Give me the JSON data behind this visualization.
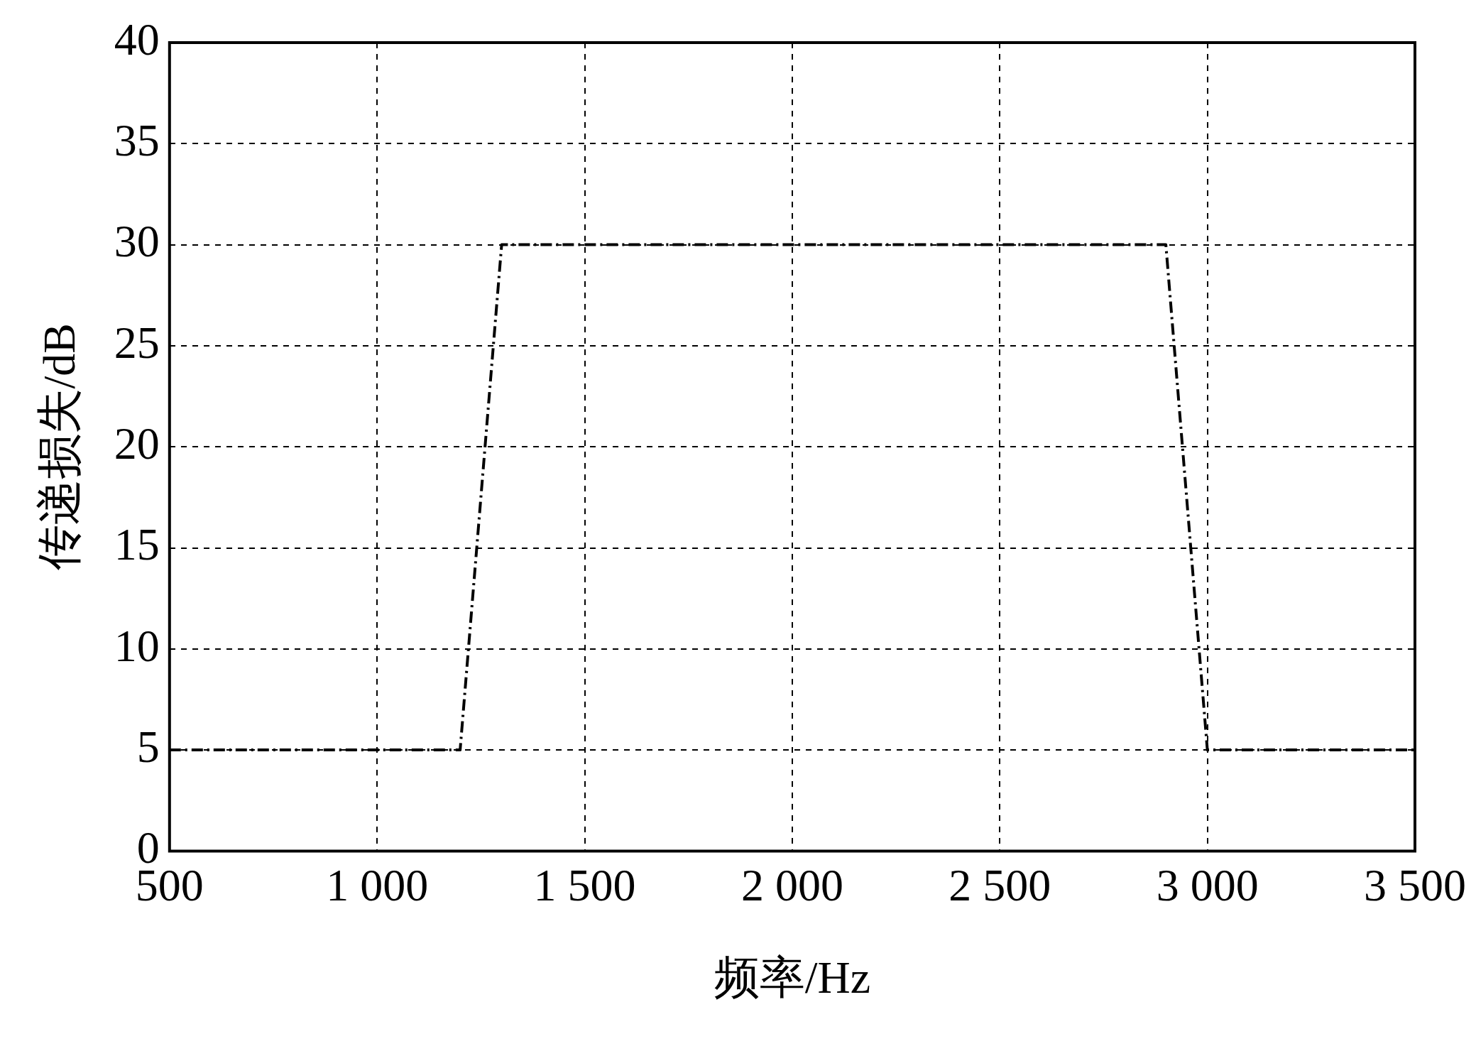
{
  "chart_data": {
    "type": "line",
    "xlabel": "频率/Hz",
    "ylabel": "传递损失/dB",
    "x": [
      500,
      1200,
      1300,
      2900,
      3000,
      3500
    ],
    "series": [
      {
        "color": "#000000",
        "values": [
          5,
          5,
          30,
          30,
          5,
          5
        ]
      }
    ],
    "xlim": [
      500,
      3500
    ],
    "xticks": [
      500,
      {
        "value": 1000,
        "label": "1 000"
      },
      {
        "value": 1500,
        "label": "1 500"
      },
      {
        "value": 2000,
        "label": "2 000"
      },
      {
        "value": 2500,
        "label": "2 500"
      },
      {
        "value": 3000,
        "label": "3 000"
      },
      {
        "value": 3500,
        "label": "3 500"
      }
    ],
    "ylim": [
      0,
      40
    ],
    "yticks": [
      0,
      5,
      10,
      15,
      20,
      25,
      30,
      35,
      40
    ],
    "grid": true,
    "legend": false,
    "marker": "none",
    "line_style": "dashed"
  }
}
